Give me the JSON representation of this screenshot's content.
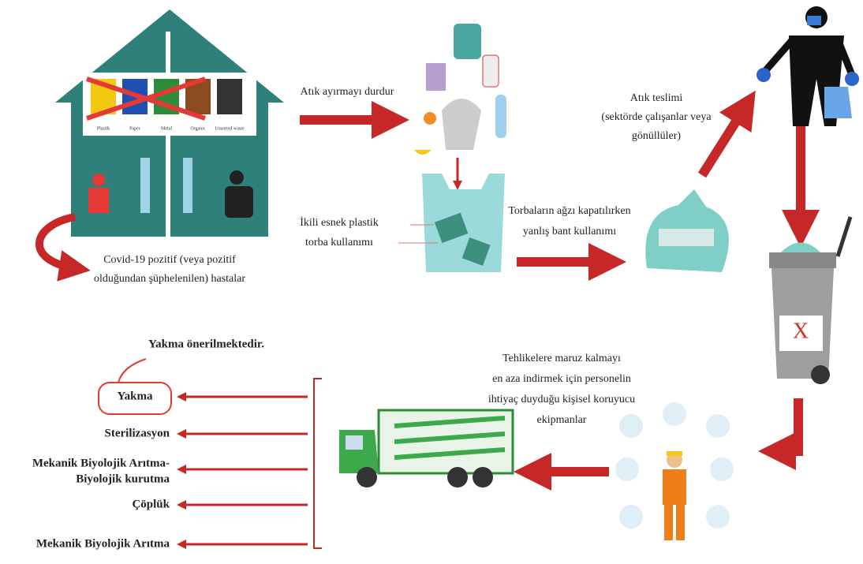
{
  "stop_sorting": "Atık ayırmayı durdur",
  "bins": [
    "Plastik",
    "Paper",
    "Metal",
    "Organic",
    "Unsorted waste"
  ],
  "patients": [
    "Covid-19 pozitif (veya pozitif",
    "olduğundan şüphelenilen) hastalar"
  ],
  "double_bag": [
    "İkili esnek plastik",
    "torba kullanımı"
  ],
  "wrong_tape": [
    "Torbaların ağzı kapatılırken",
    "yanlış bant kullanımı"
  ],
  "delivery": [
    "Atık teslimi",
    "(sektörde çalışanlar veya",
    "gönüllüler)"
  ],
  "ppe": [
    "Tehlikelere maruz kalmayı",
    "en aza indirmek için personelin",
    "ihtiyaç duyduğu kişisel koruyucu",
    "ekipmanlar"
  ],
  "recommendation": "Yakma önerilmektedir.",
  "options": [
    [
      "Yakma"
    ],
    [
      "Sterilizasyon"
    ],
    [
      "Mekanik Biyolojik Arıtma-",
      "Biyolojik kurutma"
    ],
    [
      "Çöplük"
    ],
    [
      "Mekanik Biyolojik Arıtma"
    ]
  ]
}
